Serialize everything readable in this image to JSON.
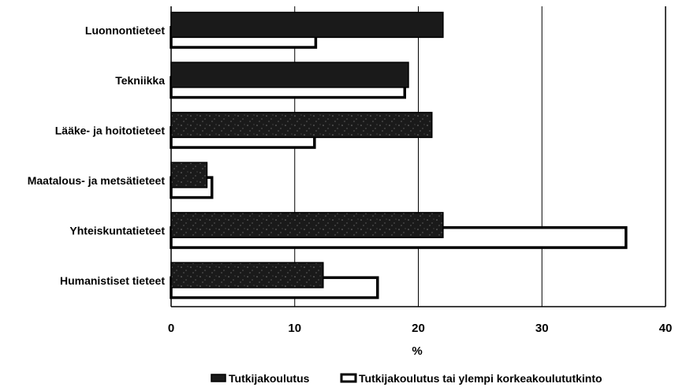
{
  "chart_data": {
    "type": "bar",
    "orientation": "horizontal",
    "categories": [
      "Luonnontieteet",
      "Tekniikka",
      "Lääke- ja hoitotieteet",
      "Maatalous- ja metsätieteet",
      "Yhteiskuntatieteet",
      "Humanistiset tieteet"
    ],
    "series": [
      {
        "name": "Tutkijakoulutus",
        "values": [
          22.0,
          19.2,
          21.1,
          2.9,
          22.0,
          12.3
        ],
        "color": "#1a1a1a"
      },
      {
        "name": "Tutkijakoulutus tai ylempi korkeakoulututkinto",
        "values": [
          11.7,
          18.9,
          11.6,
          3.3,
          36.8,
          16.7
        ],
        "color": "#ffffff"
      }
    ],
    "xlabel": "%",
    "ylabel": "",
    "xlim": [
      0,
      40
    ],
    "xticks": [
      0,
      10,
      20,
      30,
      40
    ],
    "xtick_labels": [
      "0",
      "10",
      "20",
      "30",
      "40"
    ],
    "grid": "vertical lines at 10, 20, 30",
    "legend": "bottom"
  }
}
